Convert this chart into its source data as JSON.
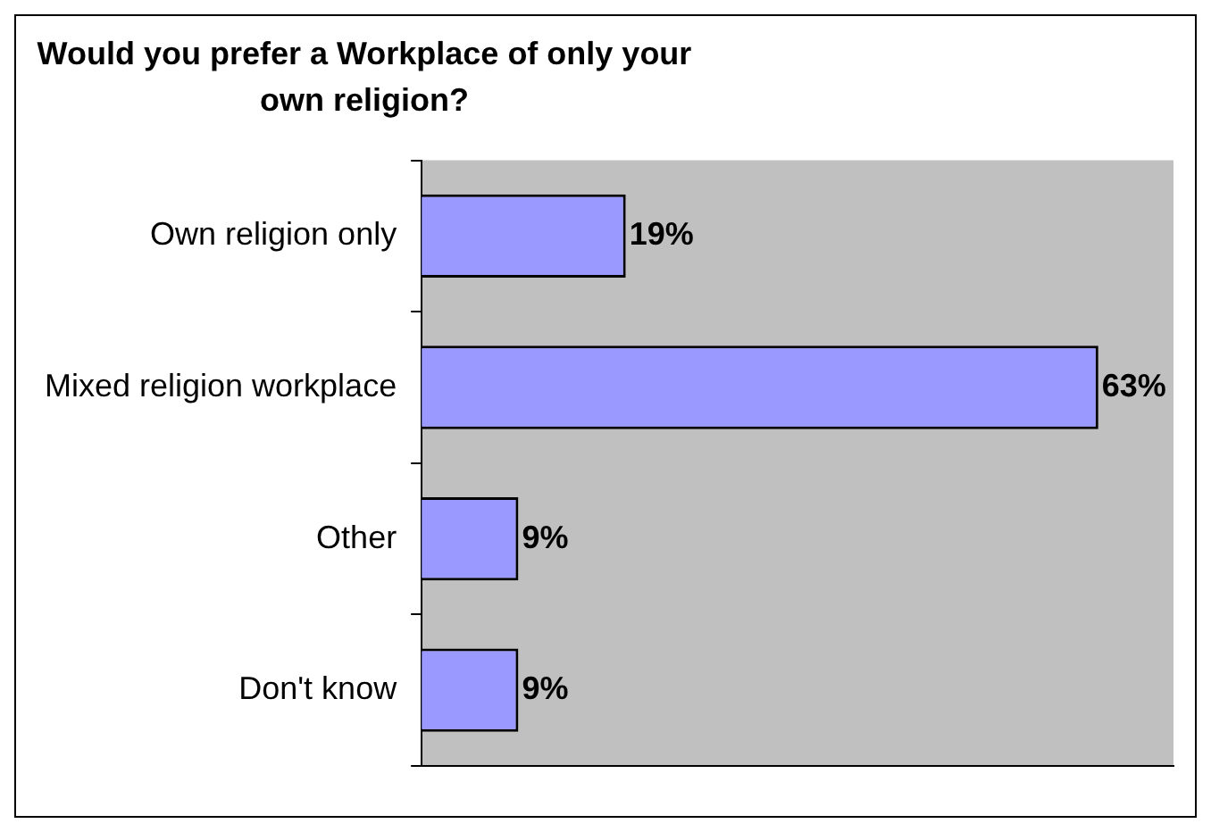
{
  "chart_data": {
    "type": "bar",
    "orientation": "horizontal",
    "title": "Would you prefer a Workplace of only your own religion?",
    "categories": [
      "Own religion only",
      "Mixed religion workplace",
      "Other",
      "Don't know"
    ],
    "values": [
      19,
      63,
      9,
      9
    ],
    "value_labels": [
      "19%",
      "63%",
      "9%",
      "9%"
    ],
    "color": "#9999ff",
    "legend": false,
    "grid": false
  }
}
